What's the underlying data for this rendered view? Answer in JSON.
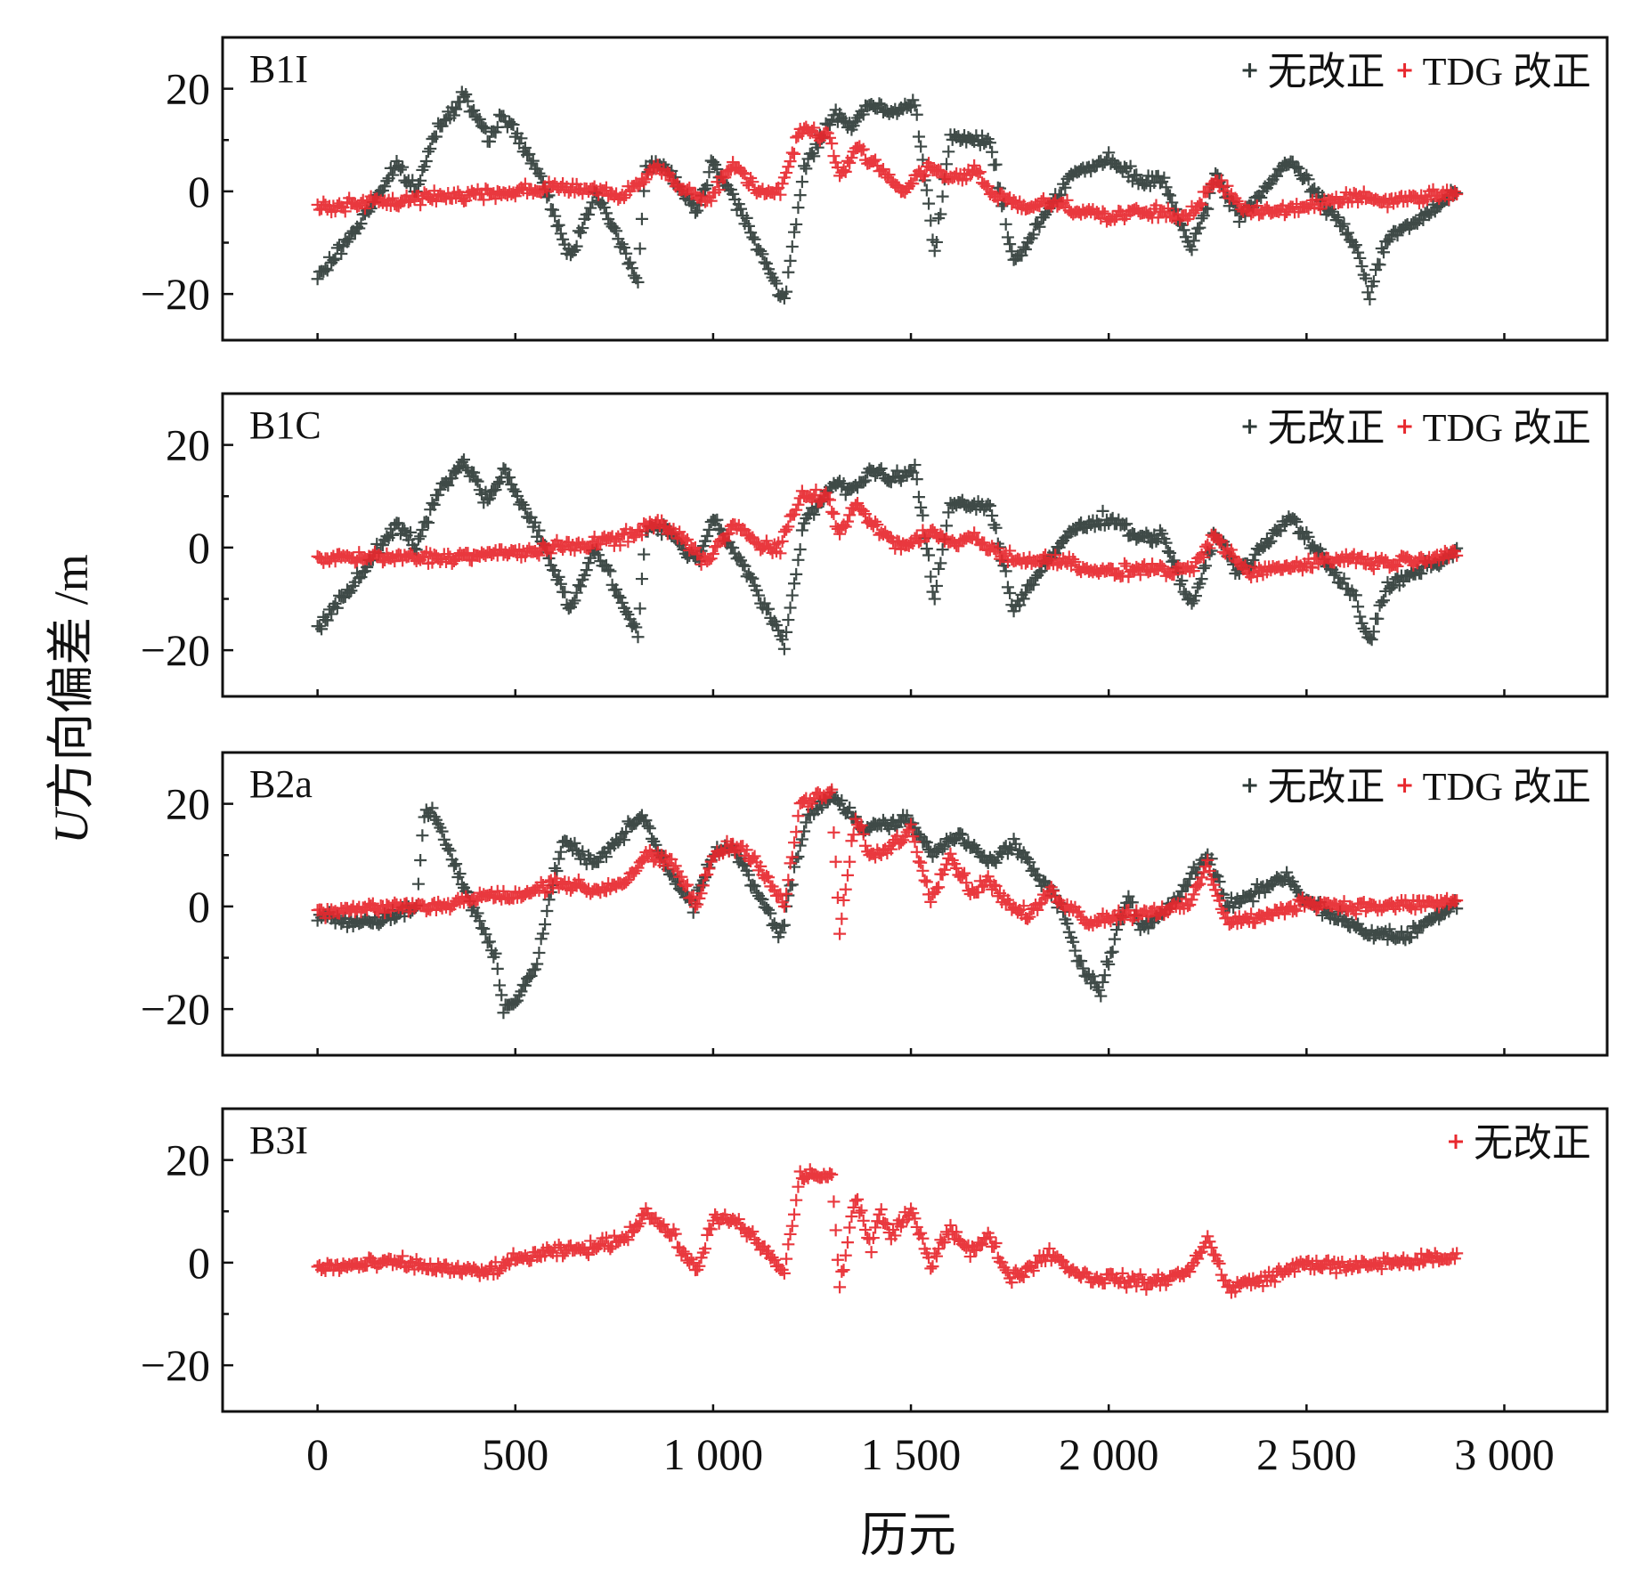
{
  "colors": {
    "uncorrected": "#2f3b38",
    "tdg": "#e8282e",
    "frame": "#111111"
  },
  "chart_data": {
    "type": "scatter",
    "xlabel": "历元",
    "ylabel_italic": "U",
    "ylabel_rest": "方向偏差 /m",
    "xlim": [
      -240,
      3260
    ],
    "x_ticks": [
      0,
      500,
      1000,
      1500,
      2000,
      2500,
      3000
    ],
    "x_tick_labels": [
      "0",
      "500",
      "1 000",
      "1 500",
      "2 000",
      "2 500",
      "3 000"
    ],
    "marker": "+",
    "panels": [
      {
        "label": "B1I",
        "ylim": [
          -29,
          30
        ],
        "y_ticks": [
          -20,
          0,
          20
        ],
        "y_tick_labels": [
          "−20",
          "0",
          "20"
        ],
        "legend": [
          {
            "text": "无改正",
            "color_key": "uncorrected"
          },
          {
            "text": "TDG 改正",
            "color_key": "tdg"
          }
        ],
        "series": [
          {
            "name": "无改正",
            "color_key": "uncorrected",
            "x": [
              0,
              100,
              200,
              250,
              300,
              370,
              430,
              470,
              550,
              640,
              700,
              810,
              830,
              880,
              960,
              1000,
              1080,
              1180,
              1230,
              1270,
              1310,
              1350,
              1400,
              1450,
              1500,
              1510,
              1560,
              1600,
              1700,
              1760,
              1900,
              2000,
              2080,
              2140,
              2210,
              2270,
              2330,
              2460,
              2560,
              2620,
              2660,
              2700,
              2750,
              2800,
              2880
            ],
            "y": [
              -17,
              -7,
              5,
              0,
              12,
              19,
              10,
              15,
              5,
              -13,
              0,
              -17,
              5,
              5,
              -4,
              6,
              -5,
              -22,
              5,
              10,
              15,
              13,
              17,
              15,
              17,
              17,
              -11,
              10,
              10,
              -14,
              3,
              6,
              2,
              2,
              -12,
              3,
              -5,
              6,
              -4,
              -10,
              -20,
              -9,
              -7,
              -5,
              0
            ]
          },
          {
            "name": "TDG 改正",
            "color_key": "tdg",
            "x": [
              0,
              200,
              300,
              500,
              620,
              700,
              780,
              860,
              920,
              980,
              1050,
              1120,
              1170,
              1220,
              1290,
              1320,
              1360,
              1420,
              1480,
              1550,
              1600,
              1660,
              1700,
              1780,
              1850,
              2000,
              2100,
              2200,
              2270,
              2350,
              2500,
              2600,
              2700,
              2880
            ],
            "y": [
              -3,
              -2,
              -1,
              0,
              1,
              0,
              -1,
              5,
              1,
              -2,
              5,
              0,
              0,
              12,
              11,
              3,
              8,
              5,
              0,
              5,
              2,
              4,
              0,
              -3,
              -2,
              -5,
              -4,
              -5,
              2,
              -4,
              -3,
              -1,
              -2,
              0
            ]
          }
        ]
      },
      {
        "label": "B1C",
        "ylim": [
          -29,
          30
        ],
        "y_ticks": [
          -20,
          0,
          20
        ],
        "y_tick_labels": [
          "−20",
          "0",
          "20"
        ],
        "legend": [
          {
            "text": "无改正",
            "color_key": "uncorrected"
          },
          {
            "text": "TDG 改正",
            "color_key": "tdg"
          }
        ],
        "series": [
          {
            "name": "无改正",
            "color_key": "uncorrected",
            "x": [
              0,
              100,
              200,
              250,
              300,
              370,
              430,
              470,
              550,
              640,
              700,
              810,
              830,
              880,
              960,
              1000,
              1080,
              1180,
              1230,
              1270,
              1310,
              1350,
              1400,
              1450,
              1500,
              1510,
              1560,
              1600,
              1700,
              1760,
              1900,
              2000,
              2080,
              2140,
              2210,
              2270,
              2330,
              2460,
              2560,
              2620,
              2660,
              2700,
              2750,
              2800,
              2880
            ],
            "y": [
              -16,
              -6,
              5,
              0,
              10,
              17,
              9,
              15,
              4,
              -12,
              0,
              -17,
              4,
              4,
              -3,
              6,
              -4,
              -19,
              5,
              9,
              13,
              11,
              15,
              13,
              15,
              15,
              -10,
              9,
              8,
              -12,
              3,
              6,
              2,
              2,
              -12,
              3,
              -5,
              6,
              -4,
              -9,
              -19,
              -8,
              -6,
              -4,
              -1
            ]
          },
          {
            "name": "TDG 改正",
            "color_key": "tdg",
            "x": [
              0,
              200,
              300,
              500,
              620,
              700,
              780,
              860,
              920,
              980,
              1050,
              1120,
              1170,
              1220,
              1290,
              1320,
              1360,
              1420,
              1480,
              1550,
              1600,
              1660,
              1700,
              1780,
              1850,
              2000,
              2100,
              2200,
              2270,
              2350,
              2500,
              2600,
              2700,
              2880
            ],
            "y": [
              -2,
              -2,
              -2,
              -1,
              0,
              1,
              2,
              5,
              2,
              -3,
              5,
              0,
              0,
              10,
              10,
              2,
              9,
              3,
              0,
              3,
              1,
              2,
              0,
              -3,
              -2,
              -5,
              -4,
              -5,
              2,
              -5,
              -3,
              -2,
              -3,
              -1
            ]
          }
        ]
      },
      {
        "label": "B2a",
        "ylim": [
          -29,
          30
        ],
        "y_ticks": [
          -20,
          0,
          20
        ],
        "y_tick_labels": [
          "−20",
          "0",
          "20"
        ],
        "legend": [
          {
            "text": "无改正",
            "color_key": "uncorrected"
          },
          {
            "text": "TDG 改正",
            "color_key": "tdg"
          }
        ],
        "series": [
          {
            "name": "无改正",
            "color_key": "uncorrected",
            "x": [
              0,
              60,
              150,
              250,
              270,
              290,
              380,
              450,
              470,
              500,
              550,
              620,
              700,
              760,
              820,
              900,
              950,
              1000,
              1050,
              1130,
              1170,
              1190,
              1240,
              1300,
              1380,
              1500,
              1550,
              1620,
              1700,
              1760,
              1880,
              1920,
              1980,
              2000,
              2050,
              2080,
              2150,
              2250,
              2300,
              2450,
              2500,
              2650,
              2750,
              2880
            ],
            "y": [
              -2,
              -3,
              -3,
              0,
              18,
              19,
              2,
              -10,
              -20,
              -18,
              -12,
              13,
              8,
              13,
              18,
              5,
              0,
              10,
              12,
              0,
              -6,
              2,
              18,
              22,
              15,
              17,
              10,
              14,
              9,
              12,
              0,
              -10,
              -17,
              -10,
              2,
              -5,
              0,
              10,
              0,
              6,
              1,
              -5,
              -6,
              1
            ]
          },
          {
            "name": "TDG 改正",
            "color_key": "tdg",
            "x": [
              0,
              200,
              300,
              420,
              520,
              600,
              700,
              780,
              830,
              900,
              960,
              1000,
              1050,
              1100,
              1180,
              1220,
              1300,
              1320,
              1360,
              1400,
              1420,
              1450,
              1500,
              1550,
              1600,
              1650,
              1700,
              1750,
              1800,
              1850,
              1900,
              1950,
              2000,
              2100,
              2200,
              2250,
              2300,
              2400,
              2500,
              2600,
              2700,
              2880
            ],
            "y": [
              -1,
              0,
              0,
              2,
              2,
              5,
              3,
              5,
              10,
              8,
              0,
              10,
              12,
              10,
              0,
              20,
              22,
              -5,
              17,
              10,
              10,
              12,
              15,
              2,
              10,
              3,
              5,
              0,
              -2,
              3,
              0,
              -3,
              -2,
              -1,
              0,
              8,
              -3,
              -2,
              1,
              0,
              0,
              1
            ]
          }
        ]
      },
      {
        "label": "B3I",
        "ylim": [
          -29,
          30
        ],
        "y_ticks": [
          -20,
          0,
          20
        ],
        "y_tick_labels": [
          "−20",
          "0",
          "20"
        ],
        "legend": [
          {
            "text": "无改正",
            "color_key": "tdg"
          }
        ],
        "series": [
          {
            "name": "无改正",
            "color_key": "tdg",
            "x": [
              0,
              200,
              300,
              420,
              520,
              600,
              700,
              780,
              830,
              900,
              960,
              1000,
              1050,
              1100,
              1180,
              1220,
              1300,
              1320,
              1360,
              1400,
              1420,
              1450,
              1500,
              1550,
              1600,
              1650,
              1700,
              1750,
              1800,
              1850,
              1900,
              1950,
              2000,
              2100,
              2200,
              2250,
              2300,
              2400,
              2500,
              2600,
              2700,
              2880
            ],
            "y": [
              -1,
              0,
              -1,
              -2,
              1,
              2,
              3,
              5,
              10,
              5,
              -2,
              9,
              8,
              5,
              -2,
              17,
              17,
              -5,
              13,
              3,
              10,
              5,
              10,
              0,
              7,
              2,
              5,
              -3,
              -1,
              2,
              -1,
              -3,
              -3,
              -4,
              -2,
              5,
              -5,
              -3,
              0,
              -1,
              0,
              1
            ]
          }
        ]
      }
    ]
  }
}
